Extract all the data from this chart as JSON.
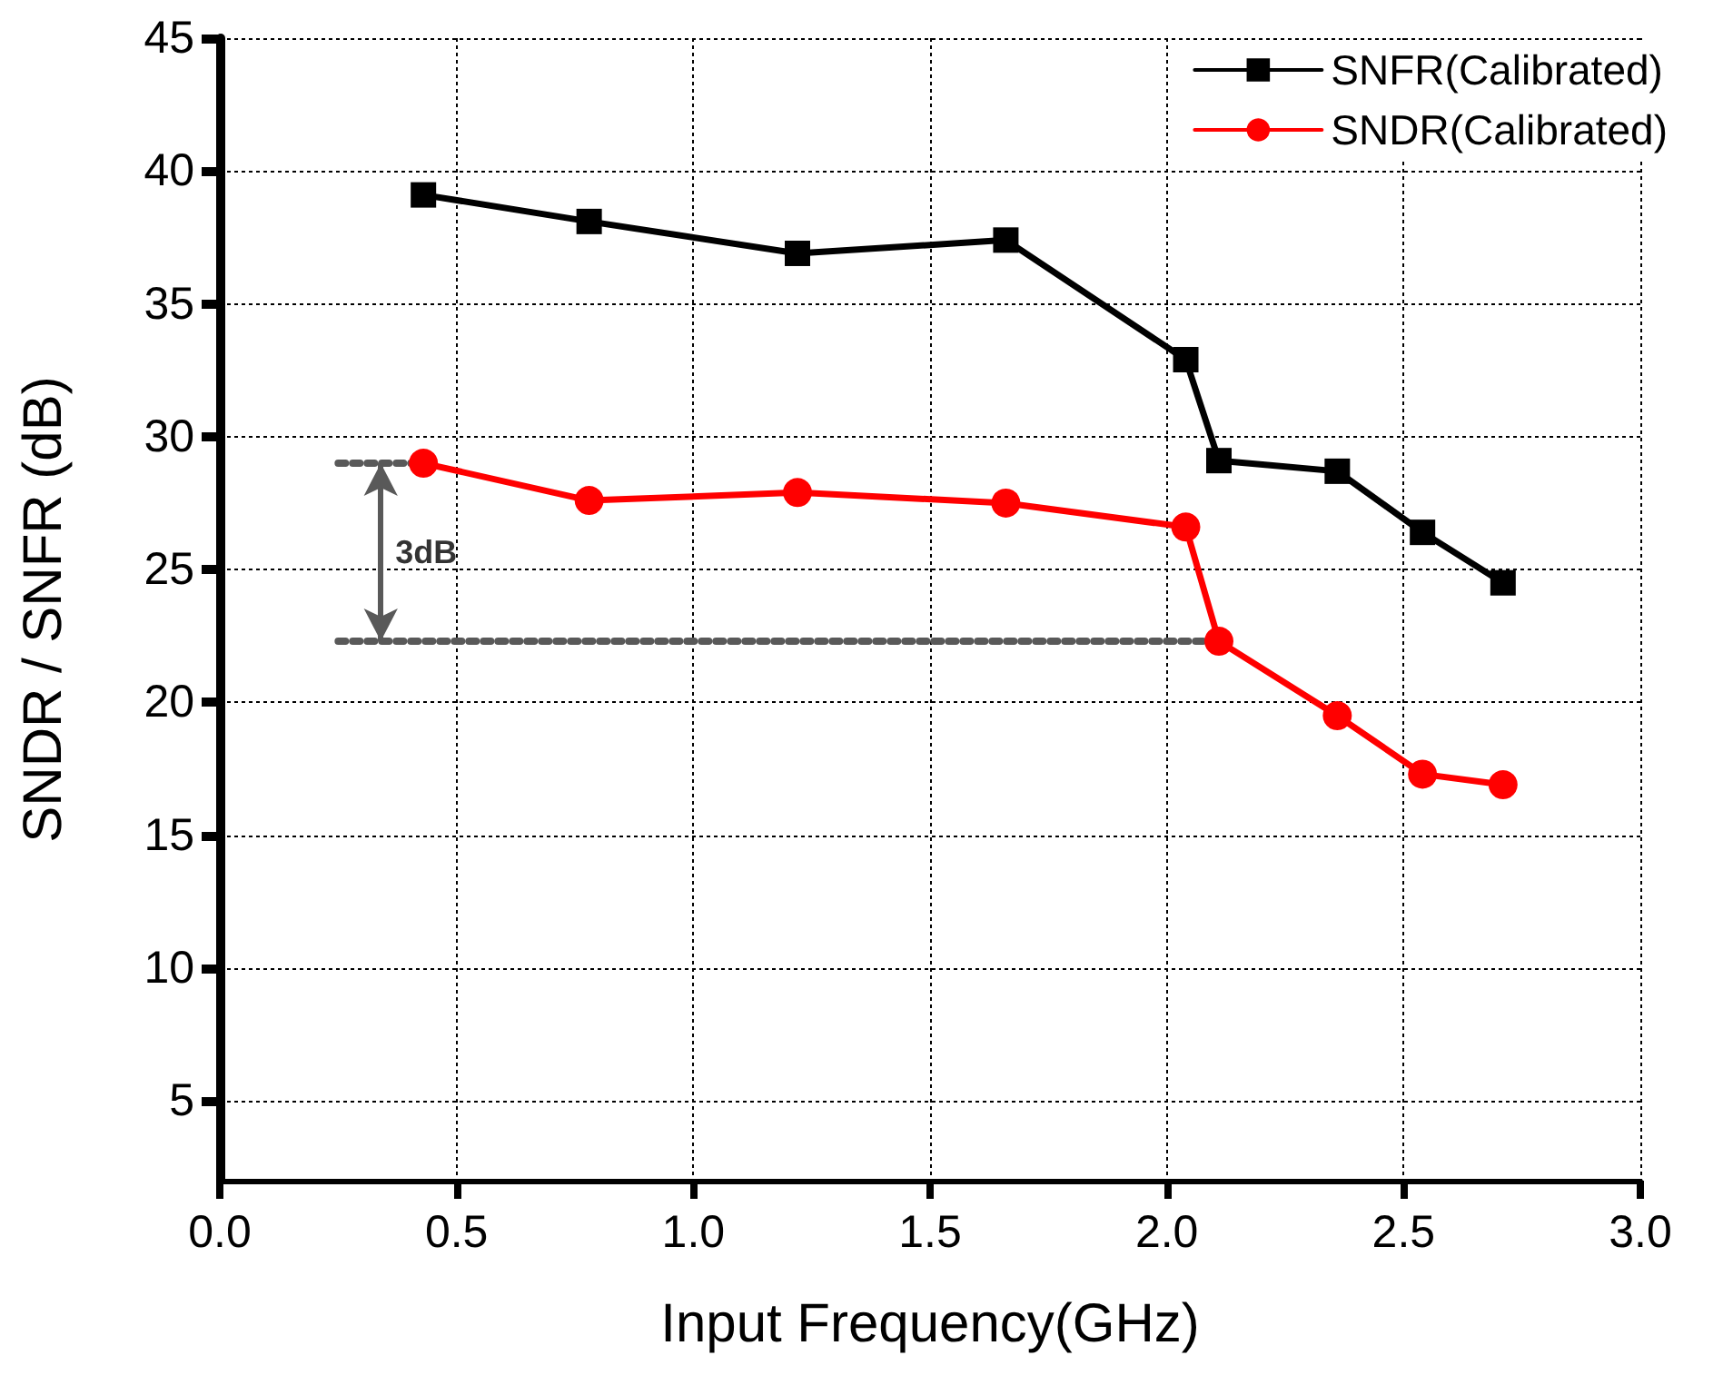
{
  "chart_data": {
    "type": "line",
    "xlabel": "Input Frequency(GHz)",
    "ylabel": "SNDR / SNFR (dB)",
    "xlim": [
      0,
      3
    ],
    "xticks": [
      {
        "value": 0,
        "label": "0.0"
      },
      0.5,
      {
        "value": 1,
        "label": "1.0"
      },
      1.5,
      {
        "value": 2,
        "label": "2.0"
      },
      2.5,
      {
        "value": 3,
        "label": "3.0"
      }
    ],
    "ylim": [
      2,
      45
    ],
    "yticks": [
      5,
      10,
      15,
      20,
      25,
      30,
      35,
      40,
      45
    ],
    "grid": true,
    "legend": "top right",
    "series": [
      {
        "name": "SNFR(Calibrated)",
        "color": "#000000",
        "marker": "square",
        "x": [
          0.43,
          0.78,
          1.22,
          1.66,
          2.04,
          2.11,
          2.36,
          2.54,
          2.71
        ],
        "values": [
          39.1,
          38.1,
          36.9,
          37.4,
          32.9,
          29.1,
          28.7,
          26.4,
          24.5
        ]
      },
      {
        "name": "SNDR(Calibrated)",
        "color": "#ff0000",
        "marker": "circle",
        "x": [
          0.43,
          0.78,
          1.22,
          1.66,
          2.04,
          2.11,
          2.36,
          2.54,
          2.71
        ],
        "values": [
          29.0,
          27.6,
          27.9,
          27.5,
          26.6,
          22.3,
          19.5,
          17.3,
          16.9
        ]
      },
      {
        "color": "#595959",
        "marker": "none",
        "line_style": "dotted",
        "x": [
          0.25,
          0.43
        ],
        "values": [
          29.0,
          29.0
        ]
      },
      {
        "color": "#595959",
        "marker": "none",
        "line_style": "dotted",
        "x": [
          0.25,
          2.11
        ],
        "values": [
          22.3,
          22.3
        ]
      }
    ],
    "annotations": [
      "3dB"
    ]
  }
}
